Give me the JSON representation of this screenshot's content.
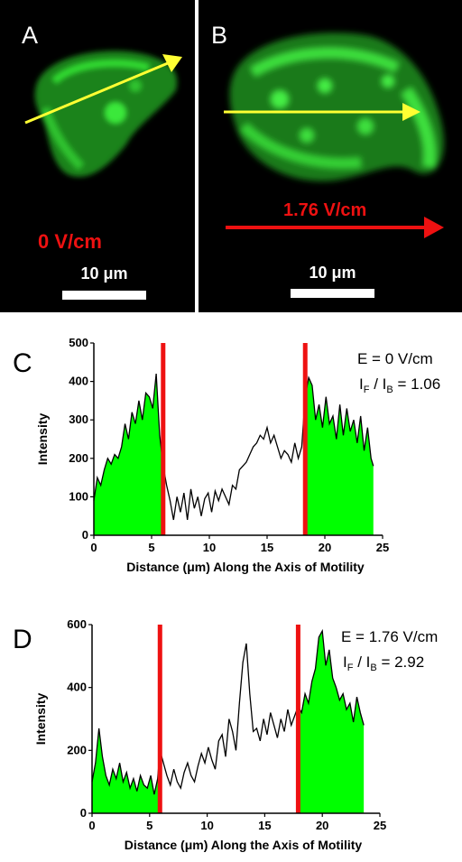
{
  "panels": {
    "a": {
      "label": "A",
      "field_label": "0 V/cm",
      "scale_label": "10 μm"
    },
    "b": {
      "label": "B",
      "field_label": "1.76 V/cm",
      "scale_label": "10 μm"
    }
  },
  "colors": {
    "cell": "#22cc22",
    "arrow_yellow": "#ffff33",
    "arrow_red": "#ee1111",
    "fill": "#00ff00",
    "line": "#000000"
  },
  "chart_data": [
    {
      "type": "area",
      "panel_label": "C",
      "xlabel": "Distance (μm) Along the Axis of Motility",
      "ylabel": "Intensity",
      "xlim": [
        0,
        25
      ],
      "ylim": [
        0,
        500
      ],
      "xticks": [
        0,
        5,
        10,
        15,
        20,
        25
      ],
      "yticks": [
        0,
        100,
        200,
        300,
        400,
        500
      ],
      "annotation": {
        "e_text": "E = 0 V/cm",
        "ratio_value": "1.06"
      },
      "boundaries": [
        6,
        18.3
      ],
      "shaded_ranges": [
        [
          0,
          6
        ],
        [
          18.3,
          24.2
        ]
      ],
      "x": [
        0,
        0.3,
        0.6,
        0.9,
        1.2,
        1.5,
        1.8,
        2.1,
        2.4,
        2.7,
        3.0,
        3.3,
        3.6,
        3.9,
        4.2,
        4.5,
        4.8,
        5.1,
        5.4,
        5.7,
        6.0,
        6.3,
        6.6,
        6.9,
        7.2,
        7.5,
        7.8,
        8.1,
        8.4,
        8.7,
        9.0,
        9.3,
        9.6,
        9.9,
        10.2,
        10.5,
        10.8,
        11.1,
        11.4,
        11.7,
        12.0,
        12.3,
        12.6,
        12.9,
        13.2,
        13.5,
        13.8,
        14.1,
        14.4,
        14.7,
        15.0,
        15.3,
        15.6,
        15.9,
        16.2,
        16.5,
        16.8,
        17.1,
        17.4,
        17.7,
        18.0,
        18.3,
        18.6,
        18.9,
        19.2,
        19.5,
        19.8,
        20.1,
        20.4,
        20.7,
        21.0,
        21.3,
        21.6,
        21.9,
        22.2,
        22.5,
        22.8,
        23.1,
        23.4,
        23.7,
        24.0,
        24.2
      ],
      "y": [
        90,
        150,
        130,
        170,
        200,
        185,
        210,
        200,
        230,
        290,
        250,
        320,
        290,
        350,
        300,
        370,
        360,
        330,
        420,
        260,
        180,
        130,
        90,
        40,
        100,
        60,
        110,
        40,
        120,
        70,
        100,
        50,
        95,
        110,
        60,
        115,
        90,
        120,
        100,
        80,
        130,
        120,
        170,
        180,
        190,
        210,
        230,
        240,
        260,
        250,
        280,
        240,
        260,
        230,
        200,
        220,
        210,
        190,
        240,
        200,
        230,
        360,
        410,
        390,
        300,
        340,
        280,
        360,
        290,
        310,
        250,
        340,
        260,
        330,
        270,
        300,
        240,
        310,
        220,
        280,
        200,
        180
      ]
    },
    {
      "type": "area",
      "panel_label": "D",
      "xlabel": "Distance (μm) Along the Axis of Motility",
      "ylabel": "Intensity",
      "xlim": [
        0,
        25
      ],
      "ylim": [
        0,
        600
      ],
      "xticks": [
        0,
        5,
        10,
        15,
        20,
        25
      ],
      "yticks": [
        0,
        200,
        400,
        600
      ],
      "annotation": {
        "e_text": "E = 1.76 V/cm",
        "ratio_value": "2.92"
      },
      "boundaries": [
        5.9,
        17.9
      ],
      "shaded_ranges": [
        [
          0,
          5.9
        ],
        [
          17.9,
          23.6
        ]
      ],
      "x": [
        0,
        0.3,
        0.6,
        0.9,
        1.2,
        1.5,
        1.8,
        2.1,
        2.4,
        2.7,
        3.0,
        3.3,
        3.6,
        3.9,
        4.2,
        4.5,
        4.8,
        5.1,
        5.4,
        5.7,
        5.9,
        6.2,
        6.5,
        6.8,
        7.1,
        7.4,
        7.7,
        8.0,
        8.3,
        8.6,
        8.9,
        9.2,
        9.5,
        9.8,
        10.1,
        10.4,
        10.7,
        11.0,
        11.3,
        11.6,
        11.9,
        12.2,
        12.5,
        12.8,
        13.1,
        13.4,
        13.7,
        14.0,
        14.3,
        14.6,
        14.9,
        15.2,
        15.5,
        15.8,
        16.1,
        16.4,
        16.7,
        17.0,
        17.3,
        17.6,
        17.9,
        18.2,
        18.5,
        18.8,
        19.1,
        19.4,
        19.7,
        20.0,
        20.3,
        20.6,
        20.9,
        21.2,
        21.5,
        21.8,
        22.1,
        22.4,
        22.7,
        23.0,
        23.3,
        23.6
      ],
      "y": [
        100,
        160,
        270,
        180,
        120,
        90,
        140,
        110,
        160,
        100,
        130,
        80,
        110,
        70,
        120,
        90,
        80,
        120,
        60,
        110,
        200,
        160,
        120,
        90,
        140,
        100,
        80,
        130,
        160,
        120,
        100,
        150,
        190,
        160,
        210,
        170,
        140,
        230,
        250,
        180,
        300,
        260,
        200,
        350,
        480,
        540,
        380,
        260,
        270,
        230,
        300,
        250,
        320,
        280,
        240,
        300,
        260,
        330,
        280,
        310,
        340,
        320,
        380,
        350,
        420,
        460,
        560,
        580,
        470,
        520,
        430,
        400,
        360,
        380,
        330,
        350,
        290,
        370,
        320,
        280
      ]
    }
  ]
}
